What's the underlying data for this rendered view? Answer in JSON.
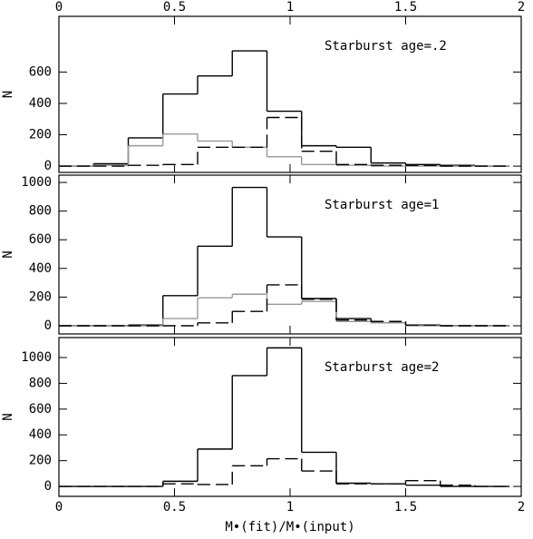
{
  "chart_data": [
    {
      "type": "histogram",
      "annotation": "Starburst age=.2",
      "ylabel": "N",
      "bins": [
        0,
        0.15,
        0.3,
        0.45,
        0.6,
        0.75,
        0.9,
        1.05,
        1.2,
        1.35,
        1.5,
        1.65,
        1.8,
        1.95
      ],
      "xlim": [
        0,
        2
      ],
      "xticks": [
        0,
        0.5,
        1,
        1.5,
        2
      ],
      "xticklabels_position": "top",
      "ylim": [
        -40,
        955
      ],
      "yticks": [
        0,
        200,
        400,
        600
      ],
      "series": [
        {
          "color": "#000000",
          "linestyle": "solid",
          "values": [
            0,
            15,
            180,
            460,
            575,
            735,
            350,
            130,
            120,
            20,
            10,
            5,
            0
          ]
        },
        {
          "color": "#999999",
          "linestyle": "solid",
          "values": [
            0,
            5,
            130,
            205,
            160,
            120,
            60,
            10,
            5,
            0,
            0,
            0,
            0
          ]
        },
        {
          "color": "#000000",
          "linestyle": "dashed",
          "values": [
            0,
            0,
            5,
            10,
            120,
            120,
            310,
            95,
            10,
            5,
            5,
            0,
            0
          ]
        }
      ]
    },
    {
      "type": "histogram",
      "annotation": "Starburst age=1",
      "ylabel": "N",
      "bins": [
        0,
        0.15,
        0.3,
        0.45,
        0.6,
        0.75,
        0.9,
        1.05,
        1.2,
        1.35,
        1.5,
        1.65,
        1.8,
        1.95
      ],
      "xlim": [
        0,
        2
      ],
      "xticks": [
        0,
        0.5,
        1,
        1.5,
        2
      ],
      "xticklabels_position": "none",
      "ylim": [
        -57,
        1051
      ],
      "yticks": [
        0,
        200,
        400,
        600,
        800,
        1000
      ],
      "series": [
        {
          "color": "#000000",
          "linestyle": "solid",
          "values": [
            0,
            0,
            5,
            210,
            555,
            965,
            620,
            190,
            50,
            20,
            5,
            0,
            0
          ]
        },
        {
          "color": "#999999",
          "linestyle": "solid",
          "values": [
            0,
            0,
            0,
            50,
            195,
            220,
            150,
            170,
            30,
            20,
            0,
            0,
            0
          ]
        },
        {
          "color": "#000000",
          "linestyle": "dashed",
          "values": [
            0,
            0,
            0,
            0,
            20,
            100,
            285,
            185,
            40,
            30,
            5,
            0,
            0
          ]
        }
      ]
    },
    {
      "type": "histogram",
      "annotation": "Starburst age=2",
      "ylabel": "N",
      "xlabel": "M•(fit)/M•(input)",
      "bins": [
        0,
        0.15,
        0.3,
        0.45,
        0.6,
        0.75,
        0.9,
        1.05,
        1.2,
        1.35,
        1.5,
        1.65,
        1.8,
        1.95
      ],
      "xlim": [
        0,
        2
      ],
      "xticks": [
        0,
        0.5,
        1,
        1.5,
        2
      ],
      "xticklabels_position": "bottom",
      "ylim": [
        -77,
        1155
      ],
      "yticks": [
        0,
        200,
        400,
        600,
        800,
        1000
      ],
      "series": [
        {
          "color": "#000000",
          "linestyle": "solid",
          "values": [
            0,
            0,
            0,
            40,
            290,
            860,
            1075,
            265,
            25,
            20,
            10,
            0,
            0
          ]
        },
        {
          "color": "#000000",
          "linestyle": "dashed",
          "values": [
            0,
            0,
            0,
            20,
            15,
            160,
            215,
            120,
            20,
            20,
            45,
            10,
            0
          ]
        }
      ]
    }
  ]
}
